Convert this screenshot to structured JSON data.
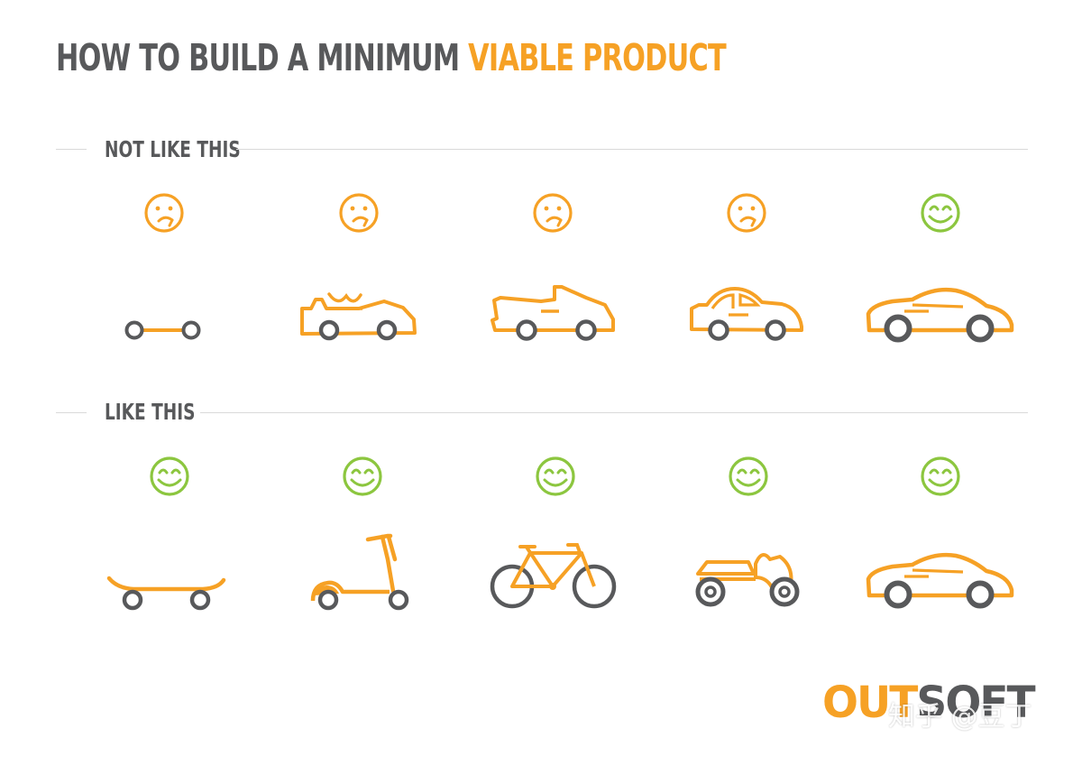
{
  "title": {
    "part1": "HOW TO BUILD A MINIMUM",
    "part2": "VIABLE PRODUCT"
  },
  "sections": [
    {
      "label": "NOT LIKE THIS",
      "steps": [
        {
          "mood": "sad",
          "vehicle": "chassis-wheels"
        },
        {
          "mood": "sad",
          "vehicle": "car-open-body"
        },
        {
          "mood": "sad",
          "vehicle": "car-convertible"
        },
        {
          "mood": "sad",
          "vehicle": "car-small"
        },
        {
          "mood": "happy",
          "vehicle": "car-sedan"
        }
      ]
    },
    {
      "label": "LIKE THIS",
      "steps": [
        {
          "mood": "happy",
          "vehicle": "skateboard"
        },
        {
          "mood": "happy",
          "vehicle": "scooter"
        },
        {
          "mood": "happy",
          "vehicle": "bicycle"
        },
        {
          "mood": "happy",
          "vehicle": "motorcycle"
        },
        {
          "mood": "happy",
          "vehicle": "car-sedan"
        }
      ]
    }
  ],
  "brand": {
    "part1": "OUT",
    "part2": "SOFT"
  },
  "watermark": "知乎 @豆丁",
  "colors": {
    "accent": "#f6a125",
    "dark": "#58595b",
    "happy": "#8cc63f",
    "rule": "#d9d9d9"
  }
}
